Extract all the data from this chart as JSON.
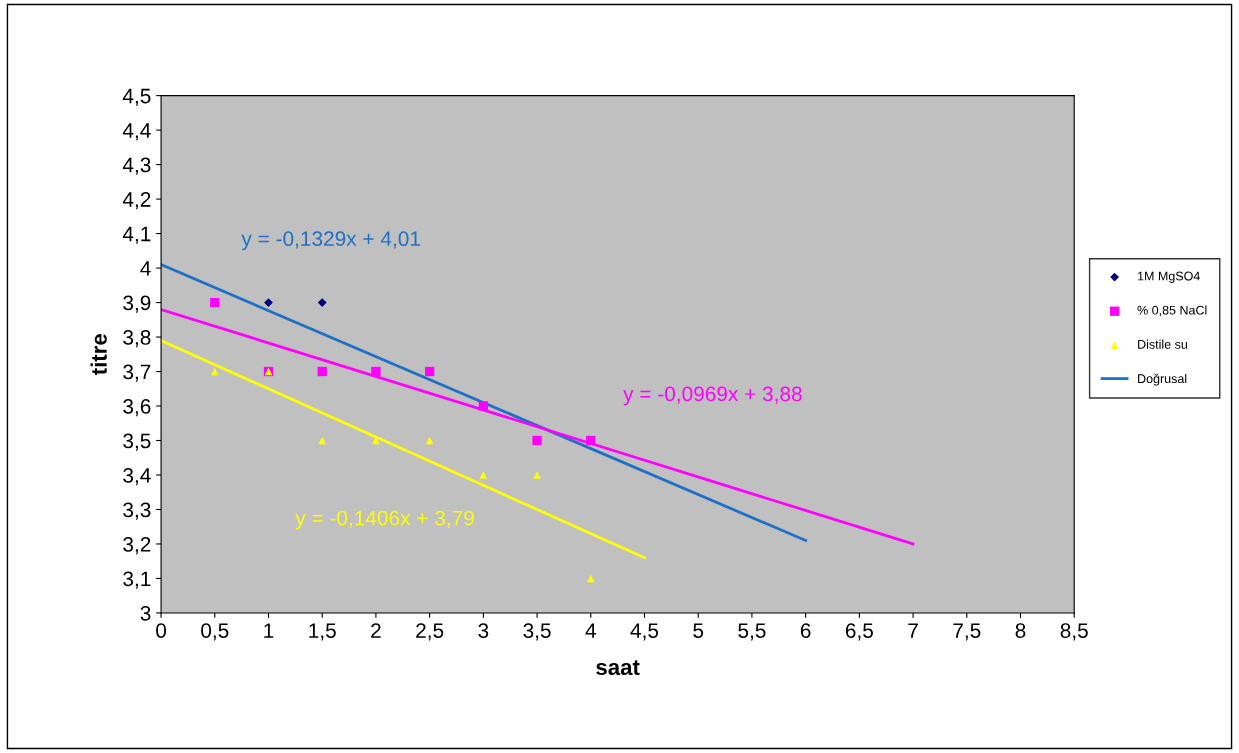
{
  "chart_data": {
    "type": "scatter",
    "xlabel": "saat",
    "ylabel": "titre",
    "xlim": [
      0,
      8.5
    ],
    "ylim": [
      3,
      4.5
    ],
    "xticks": [
      0,
      {
        "value": 0.5,
        "label": "0,5"
      },
      1,
      {
        "value": 1.5,
        "label": "1,5"
      },
      2,
      {
        "value": 2.5,
        "label": "2,5"
      },
      3,
      {
        "value": 3.5,
        "label": "3,5"
      },
      4,
      {
        "value": 4.5,
        "label": "4,5"
      },
      5,
      {
        "value": 5.5,
        "label": "5,5"
      },
      6,
      {
        "value": 6.5,
        "label": "6,5"
      },
      7,
      {
        "value": 7.5,
        "label": "7,5"
      },
      8,
      {
        "value": 8.5,
        "label": "8,5"
      }
    ],
    "yticks": [
      3,
      {
        "value": 3.1,
        "label": "3,1"
      },
      {
        "value": 3.2,
        "label": "3,2"
      },
      {
        "value": 3.3,
        "label": "3,3"
      },
      {
        "value": 3.4,
        "label": "3,4"
      },
      {
        "value": 3.5,
        "label": "3,5"
      },
      {
        "value": 3.6,
        "label": "3,6"
      },
      {
        "value": 3.7,
        "label": "3,7"
      },
      {
        "value": 3.8,
        "label": "3,8"
      },
      {
        "value": 3.9,
        "label": "3,9"
      },
      4,
      {
        "value": 4.1,
        "label": "4,1"
      },
      {
        "value": 4.2,
        "label": "4,2"
      },
      {
        "value": 4.3,
        "label": "4,3"
      },
      {
        "value": 4.4,
        "label": "4,4"
      },
      {
        "value": 4.5,
        "label": "4,5"
      }
    ],
    "grid": false,
    "legend": "right",
    "series": [
      {
        "name": "1M MgSO4",
        "marker": "diamond",
        "color": "#000080",
        "x": [
          1,
          1.5
        ],
        "values": [
          3.9,
          3.9
        ]
      },
      {
        "name": "% 0,85 NaCl",
        "marker": "square",
        "color": "#ff00ff",
        "x": [
          0.5,
          1,
          1.5,
          2,
          2.5,
          3,
          3.5,
          4
        ],
        "values": [
          3.9,
          3.7,
          3.7,
          3.7,
          3.7,
          3.6,
          3.5,
          3.5
        ]
      },
      {
        "name": "Distile su",
        "marker": "triangle",
        "color": "#ffff00",
        "x": [
          0.5,
          1,
          1.5,
          2,
          2.5,
          3,
          3.5,
          4
        ],
        "values": [
          3.7,
          3.7,
          3.5,
          3.5,
          3.5,
          3.4,
          3.4,
          3.1
        ]
      },
      {
        "name": "Doğrusal",
        "type": "line",
        "color": "#1f6fc5",
        "x": [
          0,
          6
        ],
        "values": [
          4.01,
          3.21
        ]
      },
      {
        "type": "line",
        "color": "#ff00ff",
        "x": [
          0,
          7
        ],
        "values": [
          3.88,
          3.2
        ]
      },
      {
        "type": "line",
        "color": "#ffff00",
        "x": [
          0,
          4.5
        ],
        "values": [
          3.79,
          3.16
        ]
      }
    ],
    "annotations": [
      "y = -0,1329x + 4,01",
      "y = -0,0969x + 3,88",
      "y = -0,1406x + 3,79"
    ]
  }
}
